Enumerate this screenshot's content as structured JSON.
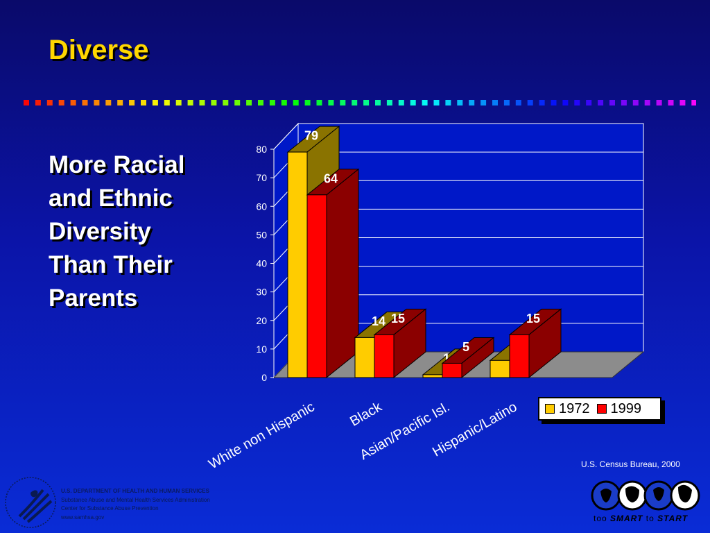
{
  "slide": {
    "title": "Diverse",
    "subtitle": "More Racial\nand Ethnic\nDiversity\nThan Their\nParents",
    "source": "U.S. Census Bureau, 2000"
  },
  "colors": {
    "title": "#ffd700",
    "series_1972_front": "#ffcc00",
    "series_1972_dark": "#8a7300",
    "series_1999_front": "#ff0000",
    "series_1999_dark": "#8b0000"
  },
  "chart_data": {
    "type": "bar",
    "title": "",
    "xlabel": "",
    "ylabel": "",
    "categories": [
      "White non Hispanic",
      "Black",
      "Asian/Pacific Isl.",
      "Hispanic/Latino"
    ],
    "series": [
      {
        "name": "1972",
        "values": [
          79,
          14,
          1,
          6
        ]
      },
      {
        "name": "1999",
        "values": [
          64,
          15,
          5,
          15
        ]
      }
    ],
    "ylim": [
      0,
      80
    ],
    "yticks": [
      0,
      10,
      20,
      30,
      40,
      50,
      60,
      70,
      80
    ],
    "grid": true,
    "legend_position": "bottom-right",
    "style": "3d"
  },
  "legend": {
    "items": [
      {
        "label": "1972",
        "color": "#ffcc00"
      },
      {
        "label": "1999",
        "color": "#ff0000"
      }
    ]
  },
  "footer": {
    "dept_lines": [
      "U.S. DEPARTMENT OF HEALTH AND HUMAN SERVICES",
      "Substance Abuse and Mental Health Services Administration",
      "Center for Substance Abuse Prevention",
      "www.samhsa.gov"
    ],
    "slogan_parts": [
      "too ",
      "SMART",
      " to ",
      "START"
    ]
  }
}
